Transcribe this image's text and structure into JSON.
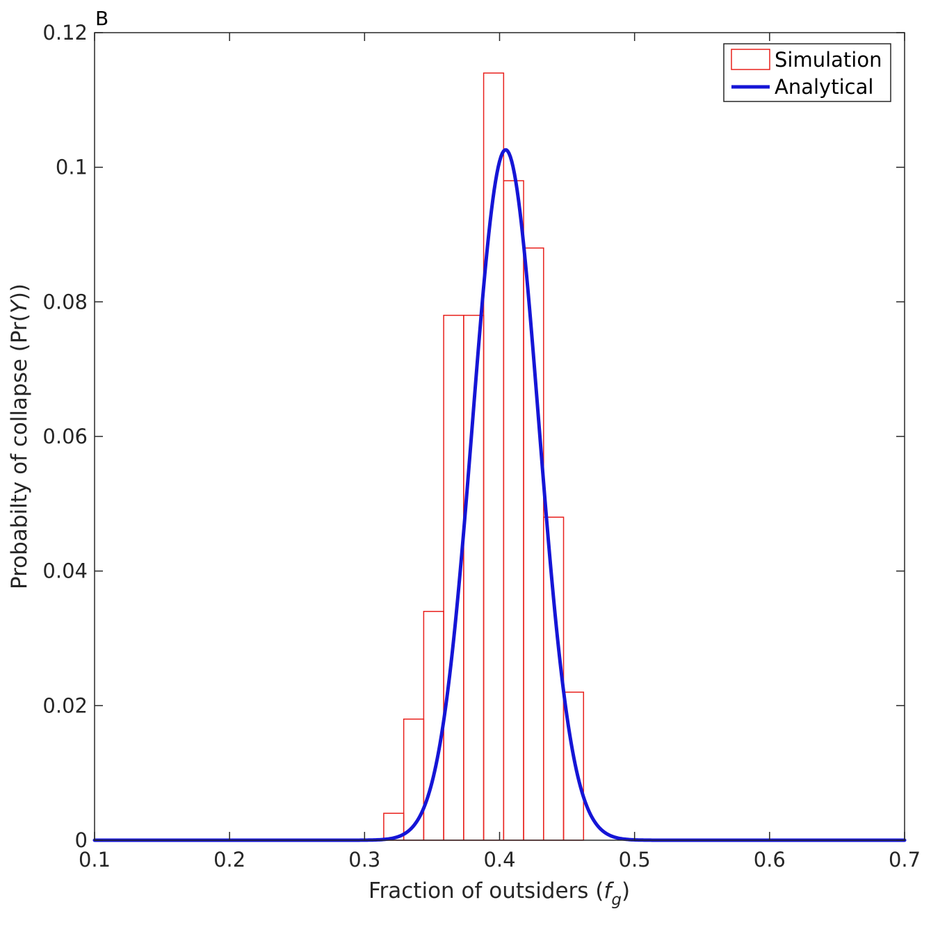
{
  "chart_data": {
    "type": "bar",
    "panel_label": "B",
    "title": "",
    "xlabel": "Fraction of outsiders (",
    "xlabel_symbol": "f",
    "xlabel_subscript": "g",
    "xlabel_end": ")",
    "ylabel": "Probabilty of collapse (Pr(",
    "ylabel_symbol": "Y",
    "ylabel_end": "))",
    "xlim": [
      0.1,
      0.7
    ],
    "ylim": [
      0,
      0.12
    ],
    "xticks": [
      0.1,
      0.2,
      0.3,
      0.4,
      0.5,
      0.6,
      0.7
    ],
    "xtick_labels": [
      "0.1",
      "0.2",
      "0.3",
      "0.4",
      "0.5",
      "0.6",
      "0.7"
    ],
    "yticks": [
      0,
      0.02,
      0.04,
      0.06,
      0.08,
      0.1,
      0.12
    ],
    "ytick_labels": [
      "0",
      "0.02",
      "0.04",
      "0.06",
      "0.08",
      "0.1",
      "0.12"
    ],
    "grid": false,
    "legend_position": "top-right",
    "series": [
      {
        "name": "Simulation",
        "kind": "histogram",
        "color": "#e8201c",
        "bin_edges": [
          0.3142,
          0.329,
          0.3438,
          0.3586,
          0.3734,
          0.3882,
          0.403,
          0.4178,
          0.4326,
          0.4474,
          0.4622
        ],
        "values": [
          0.004,
          0.018,
          0.034,
          0.078,
          0.078,
          0.114,
          0.098,
          0.088,
          0.048,
          0.022
        ]
      },
      {
        "name": "Analytical",
        "kind": "line",
        "color": "#1515d6",
        "mean": 0.4045,
        "sd": 0.0245,
        "peak": 0.1026,
        "x_range": [
          0.1,
          0.7
        ]
      }
    ]
  }
}
